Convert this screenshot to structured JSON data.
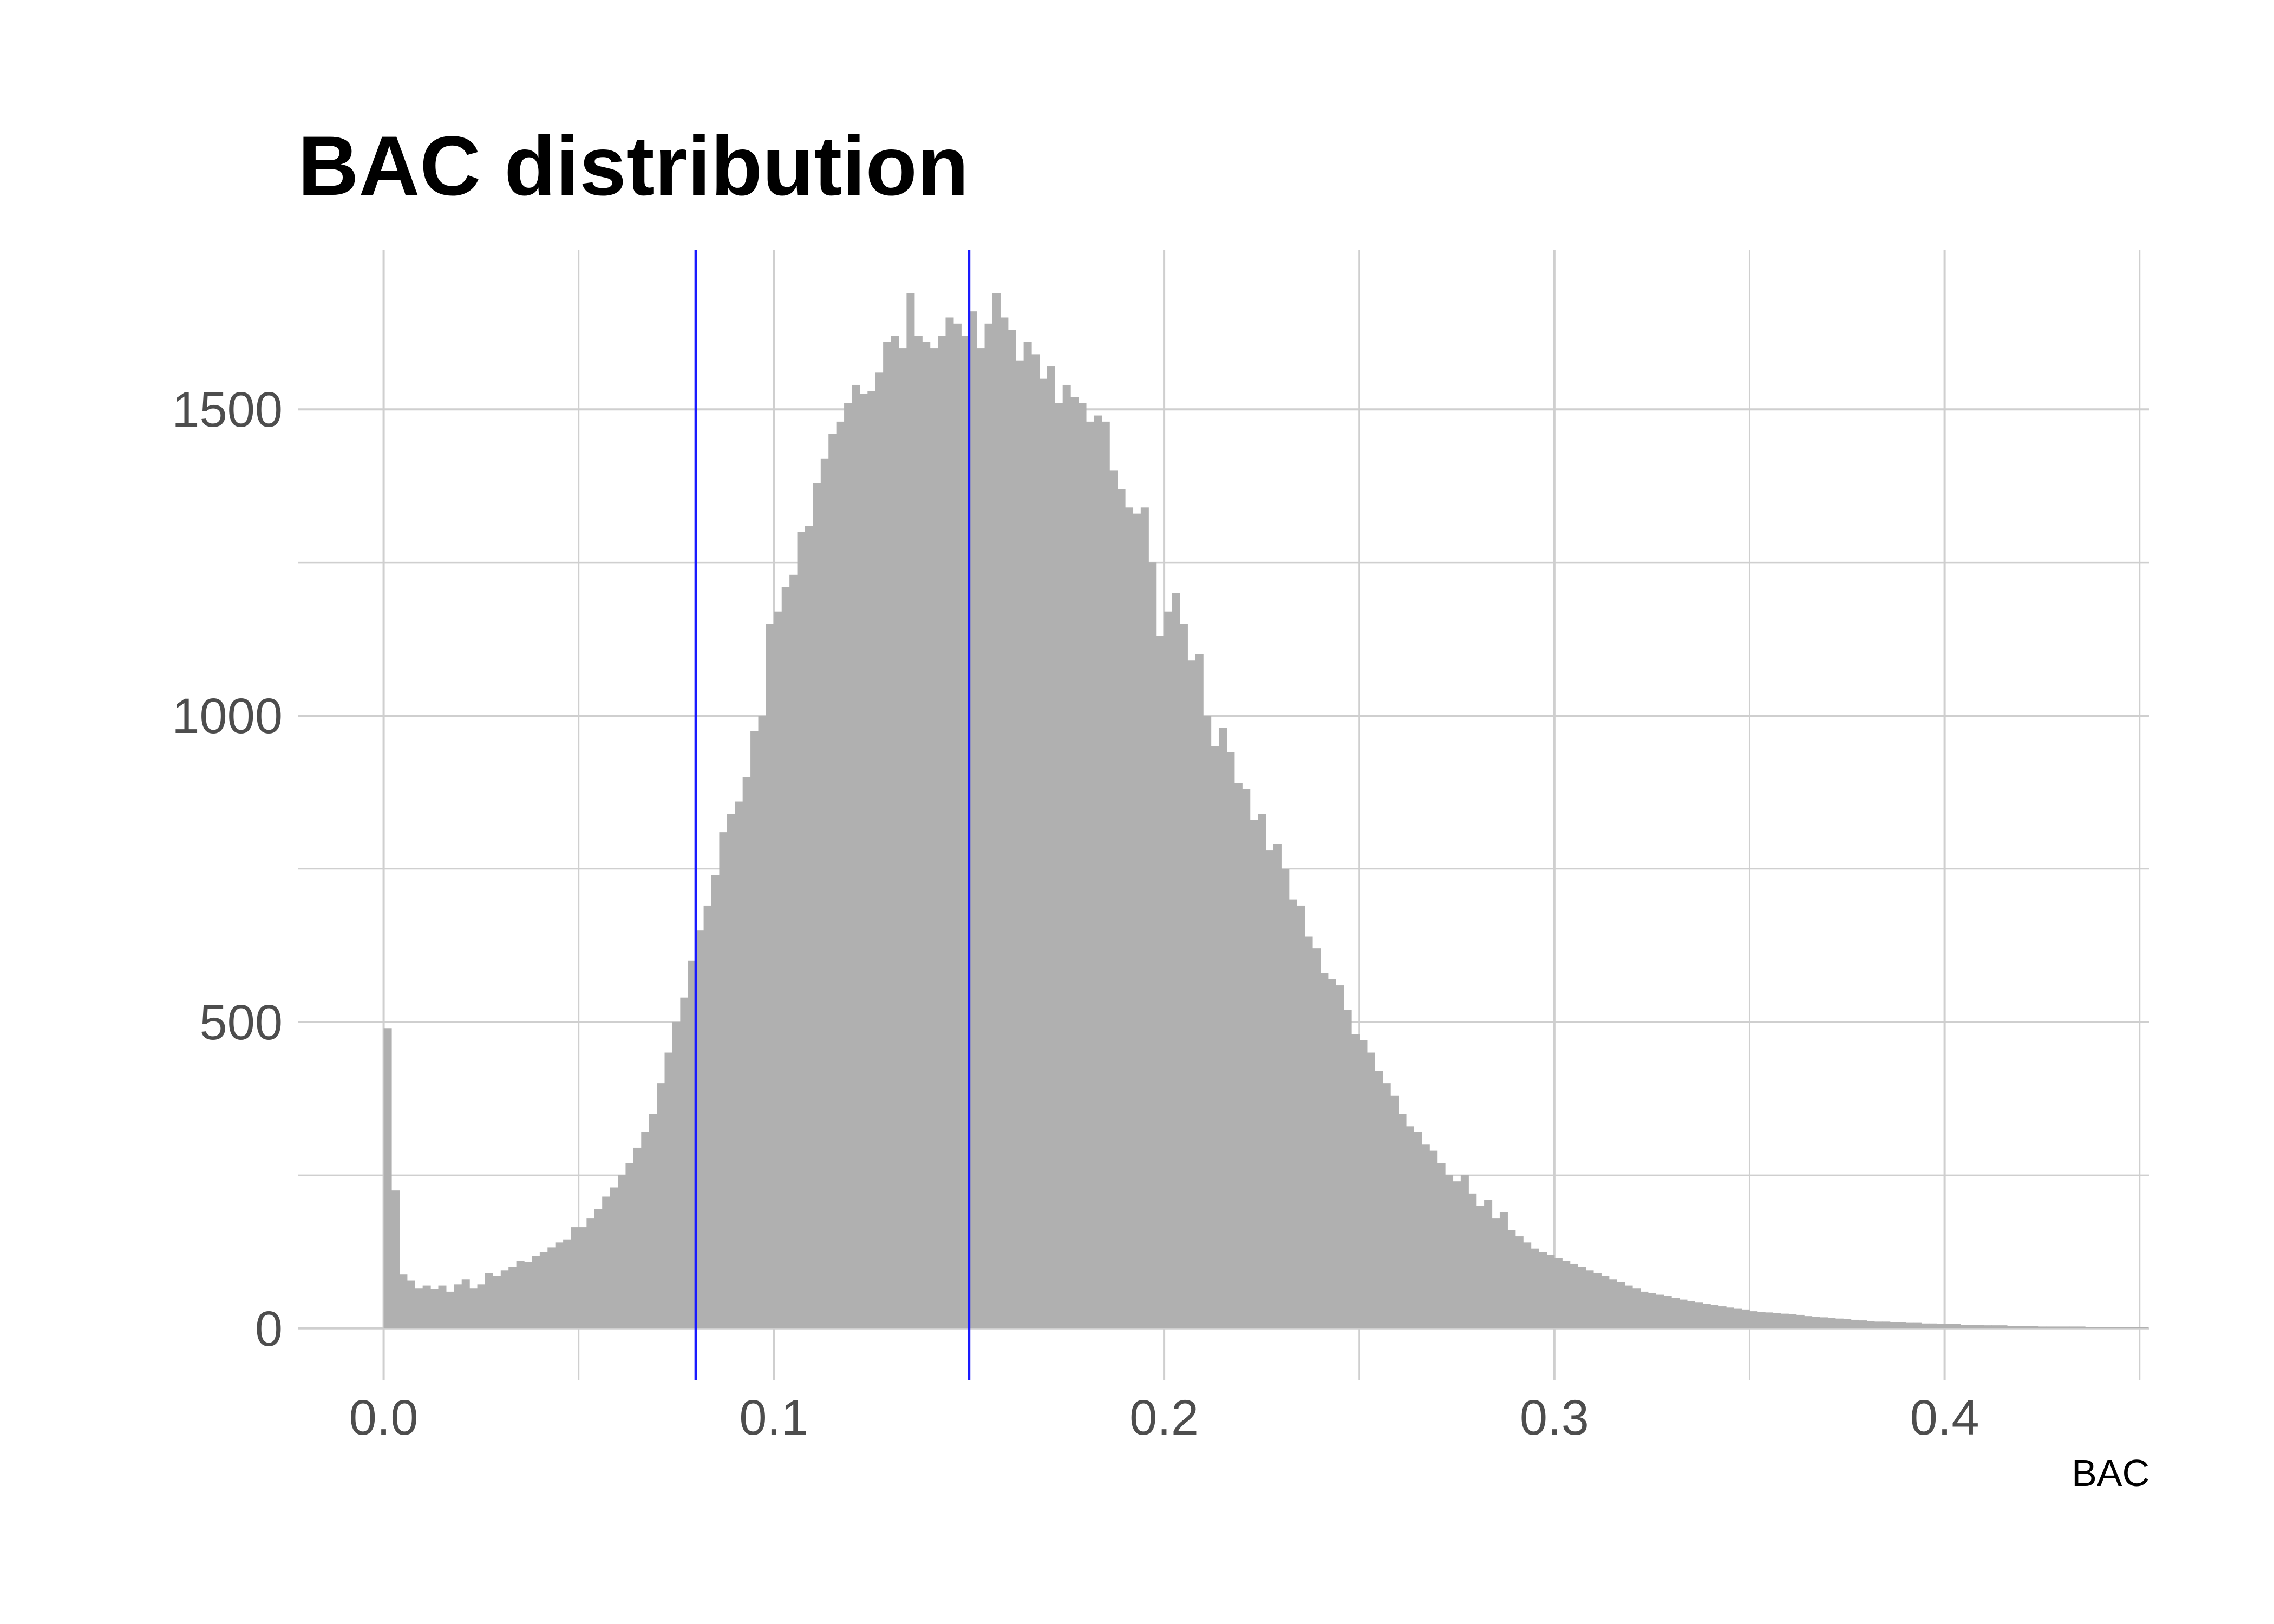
{
  "chart_data": {
    "type": "bar",
    "title": "BAC distribution",
    "xlabel": "BAC",
    "ylabel": "",
    "xlim": [
      -0.022,
      0.4525
    ],
    "ylim": [
      -85,
      1760
    ],
    "x_ticks": [
      "0.0",
      "0.1",
      "0.2",
      "0.3",
      "0.4"
    ],
    "y_ticks": [
      "0",
      "500",
      "1000",
      "1500"
    ],
    "grid": true,
    "legend": "none",
    "bar_color": "#b0b0b0",
    "bin_width": 0.002,
    "bin_start": 0.0,
    "vlines": [
      {
        "x": 0.08,
        "color": "#1a1aff"
      },
      {
        "x": 0.15,
        "color": "#1a1aff"
      }
    ],
    "values": [
      490,
      225,
      88,
      78,
      65,
      70,
      64,
      70,
      60,
      72,
      80,
      65,
      72,
      90,
      85,
      95,
      100,
      110,
      108,
      118,
      125,
      132,
      140,
      145,
      165,
      165,
      180,
      195,
      215,
      230,
      250,
      270,
      295,
      320,
      350,
      400,
      450,
      500,
      540,
      600,
      650,
      690,
      740,
      810,
      840,
      860,
      900,
      975,
      1000,
      1150,
      1170,
      1210,
      1230,
      1300,
      1310,
      1380,
      1420,
      1460,
      1480,
      1510,
      1540,
      1525,
      1530,
      1560,
      1610,
      1620,
      1600,
      1690,
      1620,
      1610,
      1600,
      1620,
      1650,
      1640,
      1620,
      1660,
      1600,
      1640,
      1690,
      1650,
      1630,
      1580,
      1610,
      1590,
      1550,
      1570,
      1510,
      1540,
      1520,
      1510,
      1480,
      1490,
      1480,
      1400,
      1370,
      1340,
      1330,
      1340,
      1250,
      1130,
      1170,
      1200,
      1150,
      1090,
      1100,
      1000,
      950,
      980,
      940,
      890,
      880,
      830,
      840,
      780,
      790,
      750,
      700,
      690,
      640,
      620,
      580,
      570,
      560,
      520,
      480,
      470,
      450,
      420,
      400,
      380,
      350,
      330,
      320,
      300,
      290,
      270,
      250,
      240,
      250,
      220,
      200,
      210,
      180,
      190,
      160,
      150,
      140,
      130,
      125,
      120,
      115,
      110,
      105,
      100,
      95,
      90,
      85,
      80,
      75,
      70,
      65,
      60,
      58,
      55,
      52,
      50,
      47,
      44,
      42,
      40,
      38,
      36,
      34,
      32,
      30,
      28,
      27,
      26,
      25,
      24,
      23,
      22,
      20,
      19,
      18,
      17,
      16,
      15,
      14,
      13,
      12,
      11,
      11,
      10,
      10,
      9,
      9,
      8,
      8,
      7,
      7,
      7,
      6,
      6,
      6,
      5,
      5,
      5,
      4,
      4,
      4,
      4,
      3,
      3,
      3,
      3,
      3,
      3,
      2,
      2,
      2,
      2,
      2,
      2,
      2,
      2
    ]
  }
}
